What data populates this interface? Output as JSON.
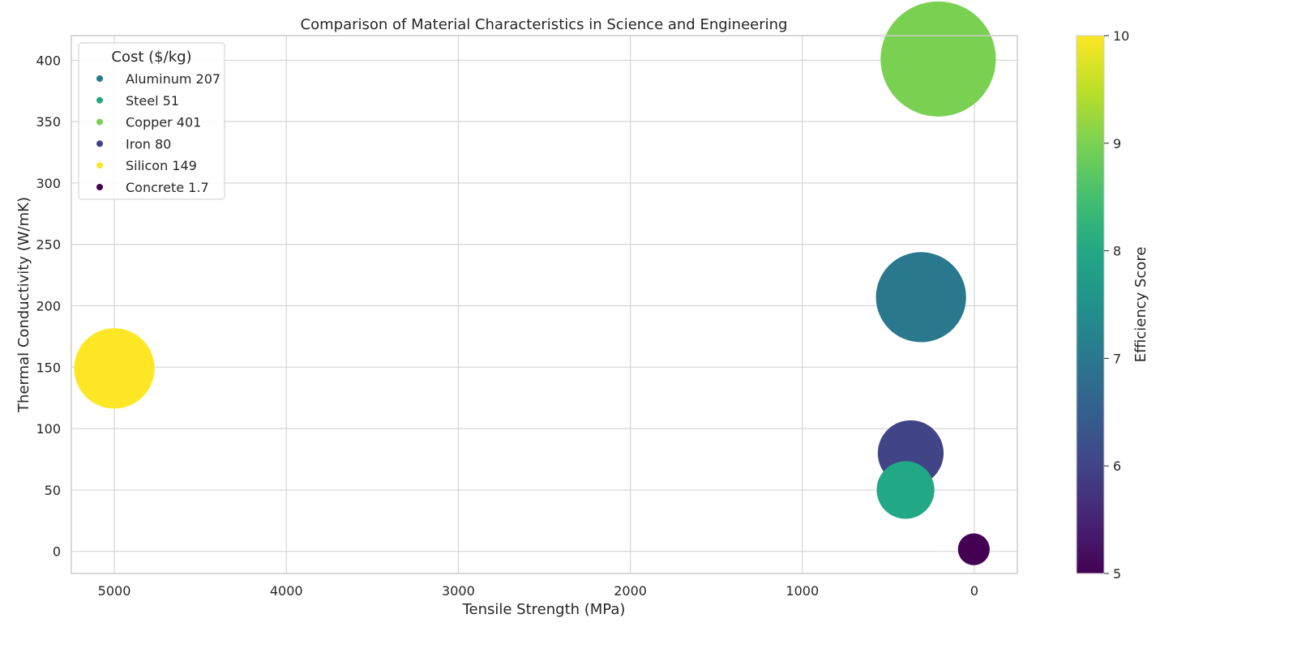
{
  "chart_data": {
    "type": "scatter",
    "title": "Comparison of Material Characteristics in Science and Engineering",
    "xlabel": "Tensile Strength (MPa)",
    "ylabel": "Thermal Conductivity (W/mK)",
    "xlim": [
      5250,
      -250
    ],
    "ylim": [
      -18,
      420
    ],
    "x_reversed": true,
    "x_ticks": [
      5000,
      4000,
      3000,
      2000,
      1000,
      0
    ],
    "x_tick_labels": [
      "5000",
      "4000",
      "3000",
      "2000",
      "1000",
      "0"
    ],
    "y_ticks": [
      0,
      50,
      100,
      150,
      200,
      250,
      300,
      350,
      400
    ],
    "y_tick_labels": [
      "0",
      "50",
      "100",
      "150",
      "200",
      "250",
      "300",
      "350",
      "400"
    ],
    "grid": true,
    "legend": {
      "title": "Cost ($/kg)",
      "placement": "upper-left",
      "entries": [
        "Aluminum 207",
        "Steel 51",
        "Copper 401",
        "Iron 80",
        "Silicon 149",
        "Concrete 1.7"
      ]
    },
    "colorbar": {
      "label": "Efficiency Score",
      "colormap": "viridis",
      "range": [
        5,
        10
      ],
      "ticks": [
        5,
        6,
        7,
        8,
        9,
        10
      ],
      "tick_labels": [
        "5",
        "6",
        "7",
        "8",
        "9",
        "10"
      ]
    },
    "points": [
      {
        "label": "Aluminum 207",
        "x": 310,
        "y": 207,
        "cost": 207,
        "efficiency": 7.0,
        "color": "#2a788e"
      },
      {
        "label": "Steel 51",
        "x": 400,
        "y": 50,
        "cost": 51,
        "efficiency": 8.0,
        "color": "#22a884"
      },
      {
        "label": "Copper 401",
        "x": 210,
        "y": 401,
        "cost": 401,
        "efficiency": 9.0,
        "color": "#7ad151"
      },
      {
        "label": "Iron 80",
        "x": 370,
        "y": 80,
        "cost": 80,
        "efficiency": 6.0,
        "color": "#414487"
      },
      {
        "label": "Silicon 149",
        "x": 5000,
        "y": 149,
        "cost": 149,
        "efficiency": 10.0,
        "color": "#fde725"
      },
      {
        "label": "Concrete 1.7",
        "x": 3,
        "y": 1.7,
        "cost": 1.7,
        "efficiency": 5.0,
        "color": "#440154"
      }
    ]
  }
}
